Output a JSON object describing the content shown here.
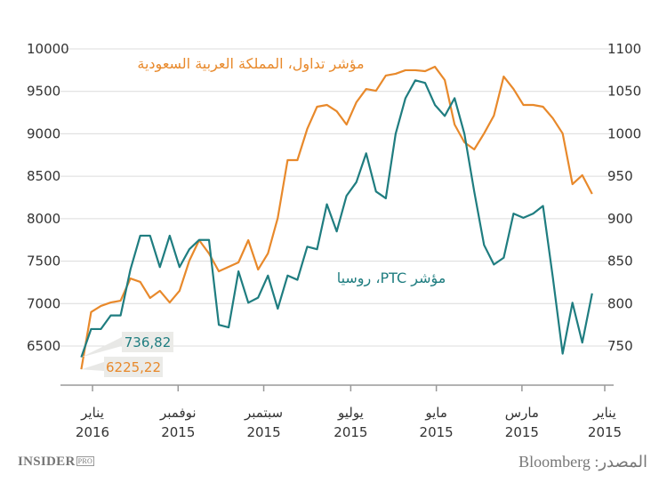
{
  "chart_data": {
    "type": "line",
    "x_axis": {
      "direction": "reversed",
      "range": [
        "2015-01-01",
        "2016-01-01"
      ],
      "ticks": [
        {
          "date": "2016-01-01",
          "month": "يناير",
          "year": "2016"
        },
        {
          "date": "2015-11-01",
          "month": "نوفمبر",
          "year": "2015"
        },
        {
          "date": "2015-09-01",
          "month": "سبتمبر",
          "year": "2015"
        },
        {
          "date": "2015-07-01",
          "month": "يوليو",
          "year": "2015"
        },
        {
          "date": "2015-05-01",
          "month": "مايو",
          "year": "2015"
        },
        {
          "date": "2015-03-01",
          "month": "مارس",
          "year": "2015"
        },
        {
          "date": "2015-01-01",
          "month": "يناير",
          "year": "2015"
        }
      ]
    },
    "y_left": {
      "range": [
        6500,
        10000
      ],
      "ticks": [
        "6500",
        "7000",
        "7500",
        "8000",
        "8500",
        "9000",
        "9500",
        "10000"
      ]
    },
    "y_right": {
      "range": [
        750,
        1100
      ],
      "ticks": [
        "750",
        "800",
        "850",
        "900",
        "950",
        "1000",
        "1050",
        "1100"
      ]
    },
    "grid": true,
    "series": [
      {
        "name": "مؤشر تداول، المملكة العربية السعودية",
        "axis": "left",
        "color": "#e8892b",
        "x_start": "2015-01-10",
        "step_days": 7,
        "values": [
          8292,
          8512,
          8407,
          9004,
          9183,
          9319,
          9340,
          9340,
          9528,
          9675,
          9214,
          9004,
          8816,
          8900,
          9109,
          9633,
          9790,
          9738,
          9749,
          9749,
          9707,
          9686,
          9507,
          9528,
          9371,
          9109,
          9266,
          9340,
          9319,
          9057,
          8690,
          8690,
          8009,
          7590,
          7401,
          7747,
          7485,
          7433,
          7380,
          7590,
          7747,
          7506,
          7150,
          7013,
          7150,
          7066,
          7255,
          7296,
          7034,
          7013,
          6972,
          6900,
          6225.22
        ],
        "end_label": "6225,22"
      },
      {
        "name": "مؤشر PTC، روسيا",
        "axis": "right",
        "color": "#1f7d80",
        "x_start": "2015-01-10",
        "step_days": 7,
        "values": [
          812,
          754,
          801,
          741,
          831,
          915,
          906,
          901,
          906,
          854,
          846,
          869,
          932,
          1000,
          1042,
          1021,
          1034,
          1060,
          1063,
          1042,
          1000,
          924,
          932,
          977,
          943,
          927,
          885,
          917,
          864,
          867,
          828,
          833,
          794,
          833,
          807,
          801,
          838,
          772,
          775,
          875,
          875,
          864,
          843,
          880,
          843,
          880,
          880,
          840,
          786,
          786,
          770,
          770,
          736.82
        ],
        "end_label": "736,82"
      }
    ]
  },
  "footer": {
    "logo": "INSIDER PRO",
    "logo_main": "INSIDER",
    "logo_sub": "PRO",
    "source": "المصدر: Bloomberg"
  }
}
